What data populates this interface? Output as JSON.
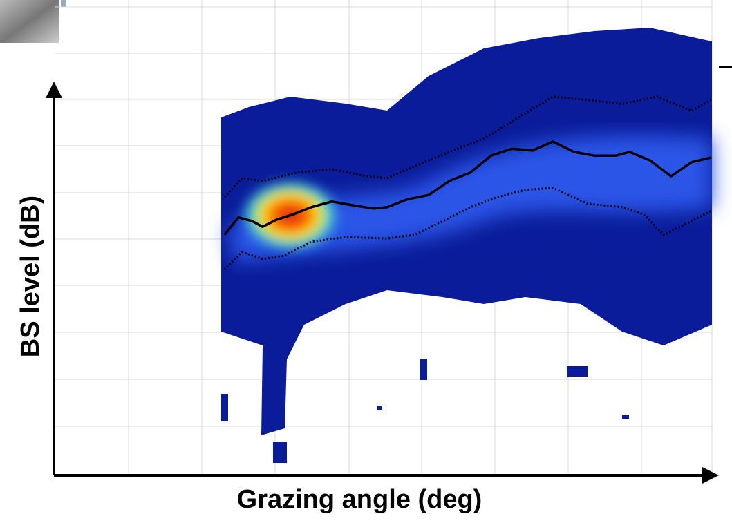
{
  "chart_data": {
    "type": "line",
    "x_label": "Grazing angle (deg)",
    "y_label": "BS level (dB)",
    "xlim": [
      0,
      9
    ],
    "ylim": [
      0,
      10
    ],
    "series": [
      {
        "color": "#000000",
        "dash": false,
        "x": [
          2.32,
          2.51,
          2.7,
          2.84,
          3.03,
          3.27,
          3.51,
          3.79,
          4.08,
          4.36,
          4.55,
          4.83,
          5.12,
          5.4,
          5.69,
          5.97,
          6.26,
          6.54,
          6.82,
          7.11,
          7.39,
          7.68,
          7.87,
          8.15,
          8.44,
          8.72,
          8.99
        ],
        "values": [
          5.1,
          5.47,
          5.39,
          5.27,
          5.42,
          5.54,
          5.69,
          5.81,
          5.73,
          5.66,
          5.69,
          5.86,
          5.95,
          6.25,
          6.43,
          6.79,
          6.94,
          6.9,
          7.09,
          6.87,
          6.79,
          6.79,
          6.87,
          6.69,
          6.35,
          6.65,
          6.75
        ]
      },
      {
        "color": "#000000",
        "dash": true,
        "x": [
          2.32,
          2.56,
          2.84,
          3.32,
          3.79,
          4.27,
          4.55,
          4.93,
          5.4,
          5.88,
          6.35,
          6.82,
          7.3,
          7.77,
          8.25,
          8.72,
          8.99
        ],
        "values": [
          5.91,
          6.31,
          6.25,
          6.43,
          6.5,
          6.35,
          6.31,
          6.57,
          6.87,
          7.16,
          7.61,
          8.05,
          7.98,
          7.9,
          8.05,
          7.75,
          7.98
        ]
      },
      {
        "color": "#000000",
        "dash": true,
        "x": [
          2.32,
          2.56,
          2.84,
          3.13,
          3.51,
          3.98,
          4.55,
          4.93,
          5.31,
          5.69,
          6.07,
          6.45,
          6.82,
          7.3,
          7.77,
          8.06,
          8.34,
          8.63,
          8.99
        ],
        "values": [
          4.36,
          4.73,
          4.58,
          4.65,
          4.95,
          5.05,
          5.02,
          5.1,
          5.39,
          5.69,
          5.91,
          6.06,
          6.1,
          5.76,
          5.69,
          5.54,
          5.1,
          5.32,
          5.61
        ]
      }
    ]
  }
}
